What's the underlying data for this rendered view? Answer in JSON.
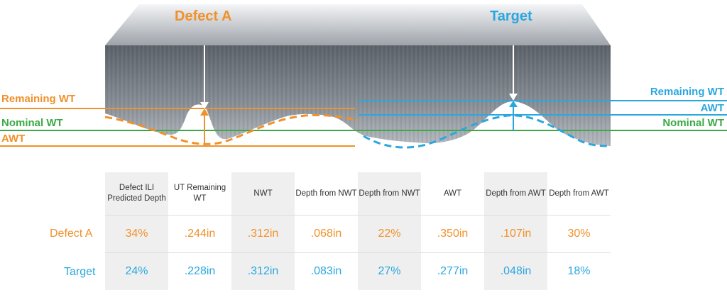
{
  "diagram": {
    "defect_title": "Defect A",
    "target_title": "Target",
    "left_labels": {
      "remaining_wt": "Remaining WT",
      "nominal_wt": "Nominal WT",
      "awt": "AWT"
    },
    "right_labels": {
      "remaining_wt": "Remaining WT",
      "awt": "AWT",
      "nominal_wt": "Nominal WT"
    }
  },
  "table": {
    "columns": [
      "Defect ILI Predicted Depth",
      "UT Remaining WT",
      "NWT",
      "Depth from NWT",
      "Depth from NWT",
      "AWT",
      "Depth from AWT",
      "Depth from AWT"
    ],
    "rows": [
      {
        "label": "Defect A",
        "values": [
          "34%",
          ".244in",
          ".312in",
          ".068in",
          "22%",
          ".350in",
          ".107in",
          "30%"
        ]
      },
      {
        "label": "Target",
        "values": [
          "24%",
          ".228in",
          ".312in",
          ".083in",
          "27%",
          ".277in",
          ".048in",
          "18%"
        ]
      }
    ]
  },
  "colors": {
    "orange": "#F0912A",
    "blue": "#2BA7DF",
    "green": "#3BAA45"
  }
}
